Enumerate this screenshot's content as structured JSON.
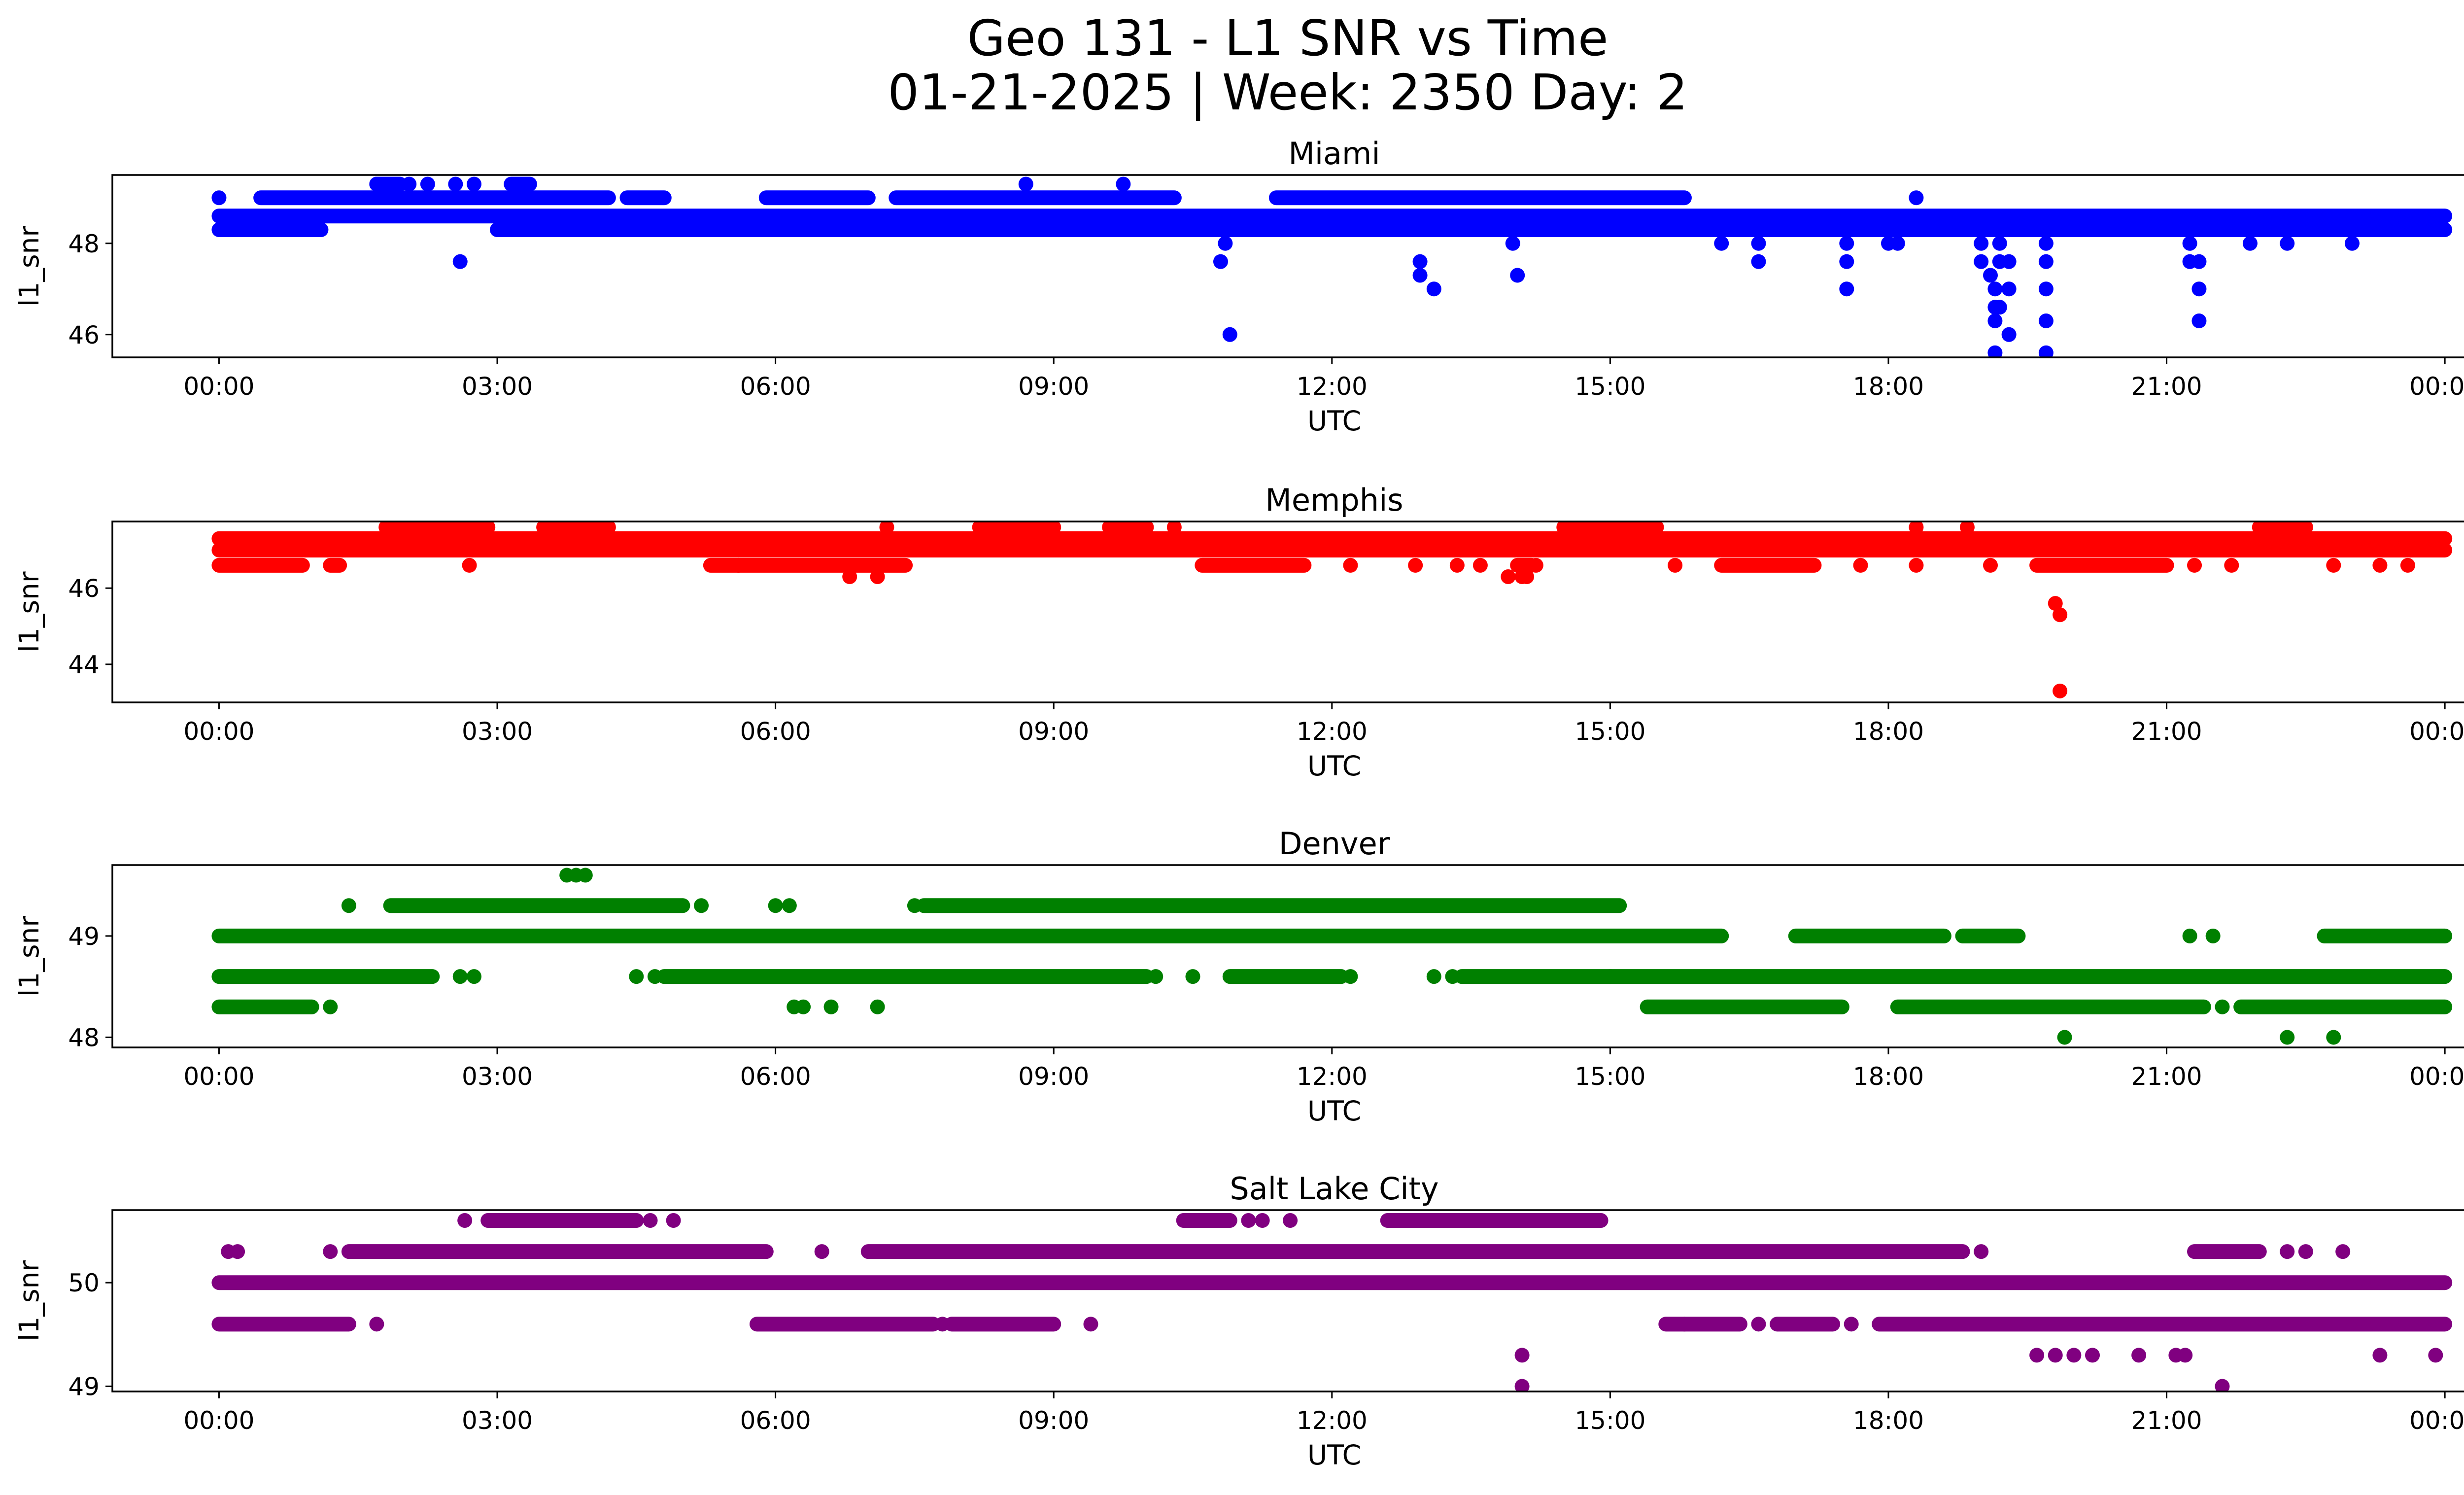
{
  "figure": {
    "title_line1": "Geo 131 - L1 SNR vs Time",
    "title_line2": "01-21-2025 | Week: 2350 Day: 2"
  },
  "chart_data": [
    {
      "type": "scatter",
      "title": "Miami",
      "xlabel": "UTC",
      "ylabel": "l1_snr",
      "color": "#0000ff",
      "xlim_hours": [
        -1.15,
        25.2
      ],
      "ylim": [
        45.5,
        49.5
      ],
      "x_ticks": [
        "00:00",
        "03:00",
        "06:00",
        "09:00",
        "12:00",
        "15:00",
        "18:00",
        "21:00",
        "00:00"
      ],
      "y_ticks": [
        46,
        48
      ],
      "bands": [
        {
          "y": 48.3,
          "ranges": [
            [
              0,
              1.1
            ],
            [
              3.0,
              24.0
            ]
          ]
        },
        {
          "y": 48.6,
          "ranges": [
            [
              0,
              24.0
            ]
          ]
        },
        {
          "y": 49.0,
          "ranges": [
            [
              0.45,
              4.2
            ],
            [
              4.4,
              4.8
            ],
            [
              5.9,
              7.0
            ],
            [
              7.3,
              10.3
            ],
            [
              11.4,
              15.8
            ]
          ]
        },
        {
          "y": 49.3,
          "ranges": [
            [
              1.7,
              1.95
            ],
            [
              3.15,
              3.35
            ]
          ]
        }
      ],
      "points": [
        [
          0.0,
          49.0
        ],
        [
          1.7,
          49.3
        ],
        [
          1.85,
          49.3
        ],
        [
          2.05,
          49.3
        ],
        [
          2.25,
          49.3
        ],
        [
          2.55,
          49.3
        ],
        [
          2.75,
          49.3
        ],
        [
          3.2,
          49.3
        ],
        [
          3.3,
          49.3
        ],
        [
          8.7,
          49.3
        ],
        [
          9.75,
          49.3
        ],
        [
          18.3,
          49.0
        ],
        [
          2.6,
          47.6
        ],
        [
          10.8,
          47.6
        ],
        [
          10.85,
          48.0
        ],
        [
          10.9,
          46.0
        ],
        [
          12.95,
          47.6
        ],
        [
          12.95,
          47.3
        ],
        [
          13.1,
          47.0
        ],
        [
          13.95,
          48.0
        ],
        [
          14.0,
          47.3
        ],
        [
          16.2,
          48.0
        ],
        [
          16.6,
          48.0
        ],
        [
          16.6,
          47.6
        ],
        [
          17.55,
          48.0
        ],
        [
          17.55,
          47.6
        ],
        [
          17.55,
          47.0
        ],
        [
          18.0,
          48.0
        ],
        [
          18.1,
          48.0
        ],
        [
          19.0,
          48.0
        ],
        [
          19.0,
          47.6
        ],
        [
          19.1,
          47.3
        ],
        [
          19.15,
          47.0
        ],
        [
          19.15,
          46.6
        ],
        [
          19.15,
          46.3
        ],
        [
          19.2,
          48.0
        ],
        [
          19.2,
          47.6
        ],
        [
          19.2,
          46.6
        ],
        [
          19.15,
          45.6
        ],
        [
          19.3,
          47.6
        ],
        [
          19.3,
          47.0
        ],
        [
          19.3,
          46.0
        ],
        [
          19.7,
          48.0
        ],
        [
          19.7,
          47.6
        ],
        [
          19.7,
          47.0
        ],
        [
          19.7,
          46.3
        ],
        [
          19.7,
          45.6
        ],
        [
          21.25,
          48.0
        ],
        [
          21.25,
          47.6
        ],
        [
          21.35,
          47.6
        ],
        [
          21.35,
          47.0
        ],
        [
          21.35,
          46.3
        ],
        [
          21.9,
          48.0
        ],
        [
          22.3,
          48.0
        ],
        [
          23.0,
          48.0
        ]
      ]
    },
    {
      "type": "scatter",
      "title": "Memphis",
      "xlabel": "UTC",
      "ylabel": "l1_snr",
      "color": "#ff0000",
      "xlim_hours": [
        -1.15,
        25.2
      ],
      "ylim": [
        43.0,
        47.75
      ],
      "x_ticks": [
        "00:00",
        "03:00",
        "06:00",
        "09:00",
        "12:00",
        "15:00",
        "18:00",
        "21:00",
        "00:00"
      ],
      "y_ticks": [
        44,
        46
      ],
      "bands": [
        {
          "y": 47.3,
          "ranges": [
            [
              0,
              24.0
            ]
          ]
        },
        {
          "y": 47.0,
          "ranges": [
            [
              0,
              24.0
            ]
          ]
        },
        {
          "y": 46.6,
          "ranges": [
            [
              0,
              0.9
            ],
            [
              1.2,
              1.3
            ],
            [
              5.3,
              7.4
            ],
            [
              10.6,
              11.7
            ],
            [
              14.0,
              14.15
            ],
            [
              16.2,
              17.2
            ],
            [
              19.6,
              21.0
            ]
          ]
        },
        {
          "y": 47.6,
          "ranges": [
            [
              1.8,
              2.9
            ],
            [
              3.5,
              4.2
            ],
            [
              8.3,
              9.0
            ],
            [
              9.6,
              10.0
            ],
            [
              14.5,
              15.5
            ],
            [
              22.1,
              22.5
            ]
          ]
        }
      ],
      "points": [
        [
          2.7,
          46.6
        ],
        [
          5.6,
          46.6
        ],
        [
          6.8,
          46.3
        ],
        [
          7.1,
          46.3
        ],
        [
          7.2,
          47.6
        ],
        [
          8.2,
          47.6
        ],
        [
          10.3,
          47.6
        ],
        [
          12.2,
          46.6
        ],
        [
          12.9,
          46.6
        ],
        [
          13.35,
          46.6
        ],
        [
          13.6,
          46.6
        ],
        [
          13.9,
          46.3
        ],
        [
          14.05,
          46.3
        ],
        [
          14.1,
          46.3
        ],
        [
          14.2,
          46.6
        ],
        [
          15.7,
          46.6
        ],
        [
          17.7,
          46.6
        ],
        [
          18.3,
          46.6
        ],
        [
          18.3,
          47.6
        ],
        [
          19.1,
          46.6
        ],
        [
          18.85,
          47.6
        ],
        [
          19.8,
          45.6
        ],
        [
          19.85,
          45.3
        ],
        [
          19.85,
          43.3
        ],
        [
          21.3,
          46.6
        ],
        [
          21.7,
          46.6
        ],
        [
          22.0,
          47.6
        ],
        [
          22.8,
          46.6
        ],
        [
          23.3,
          46.6
        ],
        [
          23.6,
          46.6
        ]
      ]
    },
    {
      "type": "scatter",
      "title": "Denver",
      "xlabel": "UTC",
      "ylabel": "l1_snr",
      "color": "#008000",
      "xlim_hours": [
        -1.15,
        25.2
      ],
      "ylim": [
        47.9,
        49.7
      ],
      "x_ticks": [
        "00:00",
        "03:00",
        "06:00",
        "09:00",
        "12:00",
        "15:00",
        "18:00",
        "21:00",
        "00:00"
      ],
      "y_ticks": [
        48,
        49
      ],
      "bands": [
        {
          "y": 49.0,
          "ranges": [
            [
              0,
              16.2
            ],
            [
              17.0,
              18.6
            ],
            [
              18.8,
              19.4
            ],
            [
              22.7,
              24.0
            ]
          ]
        },
        {
          "y": 49.3,
          "ranges": [
            [
              1.85,
              5.0
            ],
            [
              7.6,
              15.1
            ]
          ]
        },
        {
          "y": 48.6,
          "ranges": [
            [
              0,
              2.3
            ],
            [
              4.8,
              10.0
            ],
            [
              10.9,
              12.1
            ],
            [
              13.4,
              15.0
            ],
            [
              15.0,
              24.0
            ]
          ]
        },
        {
          "y": 48.3,
          "ranges": [
            [
              0,
              1.0
            ],
            [
              15.4,
              17.5
            ],
            [
              18.1,
              21.4
            ],
            [
              21.8,
              24.0
            ]
          ]
        }
      ],
      "points": [
        [
          1.4,
          49.3
        ],
        [
          3.75,
          49.6
        ],
        [
          3.85,
          49.6
        ],
        [
          3.95,
          49.6
        ],
        [
          5.2,
          49.3
        ],
        [
          6.0,
          49.3
        ],
        [
          6.15,
          49.3
        ],
        [
          7.5,
          49.3
        ],
        [
          1.2,
          48.3
        ],
        [
          2.6,
          48.6
        ],
        [
          2.75,
          48.6
        ],
        [
          4.5,
          48.6
        ],
        [
          4.7,
          48.6
        ],
        [
          6.2,
          48.3
        ],
        [
          6.3,
          48.3
        ],
        [
          6.6,
          48.3
        ],
        [
          7.1,
          48.3
        ],
        [
          10.1,
          48.6
        ],
        [
          10.5,
          48.6
        ],
        [
          12.2,
          48.6
        ],
        [
          13.1,
          48.6
        ],
        [
          13.3,
          48.6
        ],
        [
          21.25,
          49.0
        ],
        [
          21.5,
          49.0
        ],
        [
          21.6,
          48.3
        ],
        [
          19.9,
          48.0
        ],
        [
          22.3,
          48.0
        ],
        [
          22.8,
          48.0
        ]
      ]
    },
    {
      "type": "scatter",
      "title": "Salt Lake City",
      "xlabel": "UTC",
      "ylabel": "l1_snr",
      "color": "#800080",
      "xlim_hours": [
        -1.15,
        25.2
      ],
      "ylim": [
        48.95,
        50.7
      ],
      "x_ticks": [
        "00:00",
        "03:00",
        "06:00",
        "09:00",
        "12:00",
        "15:00",
        "18:00",
        "21:00",
        "00:00"
      ],
      "y_ticks": [
        49,
        50
      ],
      "bands": [
        {
          "y": 50.0,
          "ranges": [
            [
              0,
              24.0
            ]
          ]
        },
        {
          "y": 49.6,
          "ranges": [
            [
              0,
              1.4
            ],
            [
              5.8,
              7.7
            ],
            [
              7.9,
              9.0
            ],
            [
              15.6,
              16.4
            ],
            [
              16.8,
              17.4
            ],
            [
              17.9,
              24.0
            ]
          ]
        },
        {
          "y": 50.3,
          "ranges": [
            [
              1.4,
              5.9
            ],
            [
              7.0,
              18.8
            ],
            [
              21.3,
              22.0
            ]
          ]
        },
        {
          "y": 50.6,
          "ranges": [
            [
              2.9,
              4.5
            ],
            [
              10.4,
              10.9
            ],
            [
              12.6,
              14.9
            ]
          ]
        }
      ],
      "points": [
        [
          0.1,
          50.3
        ],
        [
          0.2,
          50.3
        ],
        [
          1.2,
          50.3
        ],
        [
          6.5,
          50.3
        ],
        [
          22.3,
          50.3
        ],
        [
          22.5,
          50.3
        ],
        [
          22.9,
          50.3
        ],
        [
          19.0,
          50.3
        ],
        [
          1.7,
          49.6
        ],
        [
          7.8,
          49.6
        ],
        [
          9.4,
          49.6
        ],
        [
          15.8,
          49.6
        ],
        [
          16.6,
          49.6
        ],
        [
          17.6,
          49.6
        ],
        [
          2.65,
          50.6
        ],
        [
          4.65,
          50.6
        ],
        [
          4.9,
          50.6
        ],
        [
          11.1,
          50.6
        ],
        [
          11.25,
          50.6
        ],
        [
          11.55,
          50.6
        ],
        [
          19.6,
          49.3
        ],
        [
          19.8,
          49.3
        ],
        [
          20.0,
          49.3
        ],
        [
          20.2,
          49.3
        ],
        [
          20.7,
          49.3
        ],
        [
          21.1,
          49.3
        ],
        [
          21.2,
          49.3
        ],
        [
          14.05,
          49.3
        ],
        [
          14.05,
          49.0
        ],
        [
          21.6,
          49.0
        ],
        [
          23.3,
          49.3
        ],
        [
          23.9,
          49.3
        ]
      ]
    }
  ]
}
